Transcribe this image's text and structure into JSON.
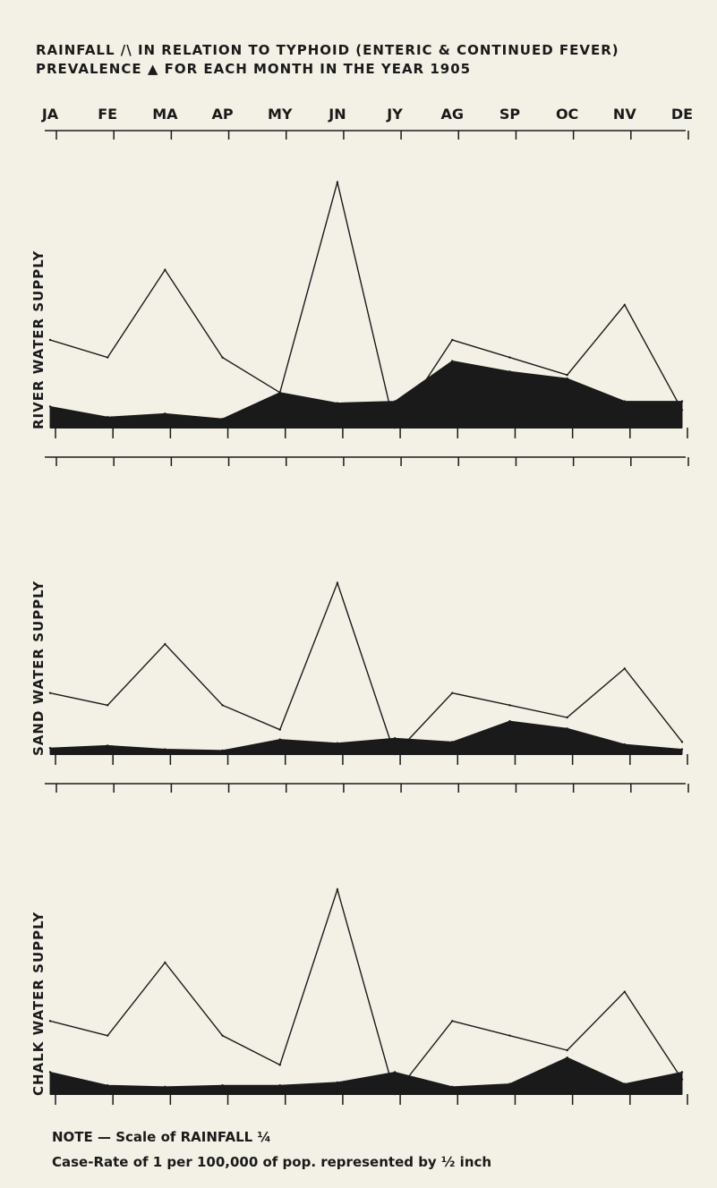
{
  "title": "Rainfall /\\ in relation to typhoid (enteric & continued fever) prevalence ▲ for each month in the year 1905",
  "note_line1": "NOTE — Scale of RAINFALL ¼",
  "note_line2": "Case-Rate of 1 per 100,000 of pop. represented by ½ inch",
  "colors": {
    "ink": "#1a1a1a",
    "paper": "#f3f0e6"
  },
  "chart_data": [
    {
      "type": "line",
      "ylabel": "RIVER WATER SUPPLY",
      "categories": [
        "JA",
        "FE",
        "MA",
        "AP",
        "MY",
        "JN",
        "JY",
        "AG",
        "SP",
        "OC",
        "NV",
        "DE"
      ],
      "series": [
        {
          "values": [
            5,
            4,
            9,
            4,
            2,
            14,
            0,
            5,
            4,
            3,
            7,
            1
          ]
        },
        {
          "values": [
            1.2,
            0.6,
            0.8,
            0.5,
            2.0,
            1.4,
            1.5,
            3.8,
            3.2,
            2.8,
            1.5,
            1.5
          ]
        }
      ],
      "ylim": [
        0,
        15
      ]
    },
    {
      "type": "line",
      "ylabel": "SAND WATER SUPPLY",
      "categories": [
        "JA",
        "FE",
        "MA",
        "AP",
        "MY",
        "JN",
        "JY",
        "AG",
        "SP",
        "OC",
        "NV",
        "DE"
      ],
      "series": [
        {
          "values": [
            5,
            4,
            9,
            4,
            2,
            14,
            0,
            5,
            4,
            3,
            7,
            1
          ]
        },
        {
          "values": [
            0.5,
            0.7,
            0.4,
            0.3,
            1.2,
            0.9,
            1.3,
            1.0,
            2.7,
            2.1,
            0.8,
            0.4
          ]
        }
      ],
      "ylim": [
        0,
        15
      ]
    },
    {
      "type": "line",
      "ylabel": "CHALK WATER SUPPLY",
      "categories": [
        "JA",
        "FE",
        "MA",
        "AP",
        "MY",
        "JN",
        "JY",
        "AG",
        "SP",
        "OC",
        "NV",
        "DE"
      ],
      "series": [
        {
          "values": [
            5,
            4,
            9,
            4,
            2,
            14,
            0,
            5,
            4,
            3,
            7,
            1
          ]
        },
        {
          "values": [
            1.5,
            0.6,
            0.5,
            0.6,
            0.6,
            0.8,
            1.5,
            0.5,
            0.7,
            2.5,
            0.7,
            1.5
          ]
        }
      ],
      "ylim": [
        0,
        15
      ]
    }
  ]
}
